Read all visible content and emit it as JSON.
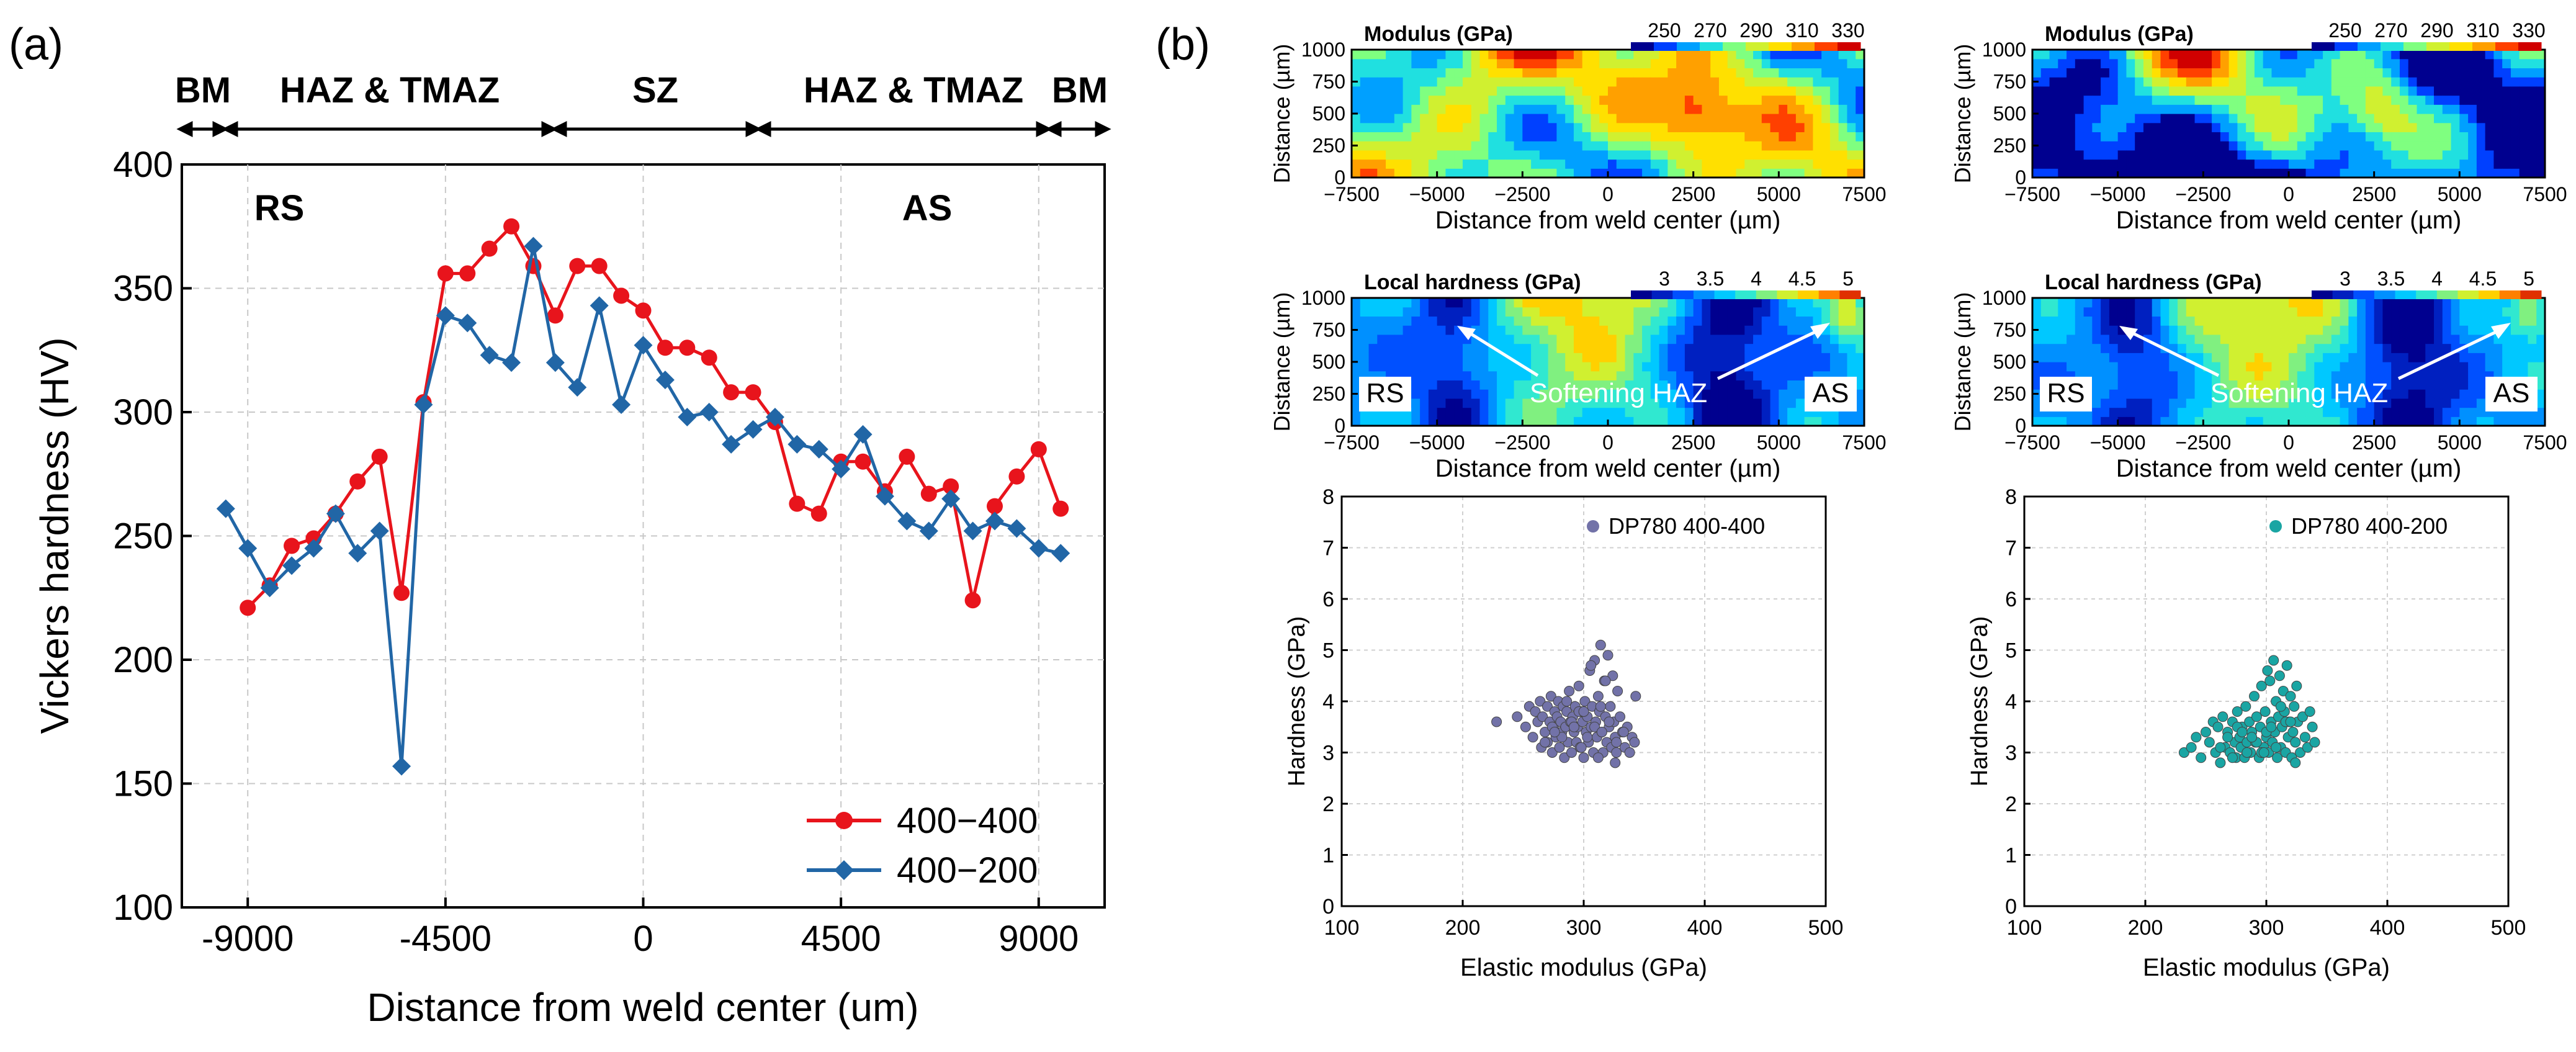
{
  "panel_a": {
    "label": "(a)",
    "zones": [
      "BM",
      "HAZ & TMAZ",
      "SZ",
      "HAZ & TMAZ",
      "BM"
    ],
    "side_left": "RS",
    "side_right": "AS"
  },
  "panel_b": {
    "label": "(b)",
    "maps": [
      {
        "title": "Modulus (GPa)",
        "ylabel": "Distance (µm)",
        "xlabel": "Distance from weld center (µm)",
        "colorbar_ticks": [
          "250",
          "270",
          "290",
          "310",
          "330"
        ],
        "x_ticks": [
          "−7500",
          "−5000",
          "−2500",
          "0",
          "2500",
          "5000",
          "7500"
        ],
        "y_ticks": [
          "0",
          "250",
          "500",
          "750",
          "1000"
        ]
      },
      {
        "title": "Modulus (GPa)",
        "ylabel": "Distance (µm)",
        "xlabel": "Distance from weld center (µm)",
        "colorbar_ticks": [
          "250",
          "270",
          "290",
          "310",
          "330"
        ],
        "x_ticks": [
          "−7500",
          "−5000",
          "−2500",
          "0",
          "2500",
          "5000",
          "7500"
        ],
        "y_ticks": [
          "0",
          "250",
          "500",
          "750",
          "1000"
        ]
      },
      {
        "title": "Local hardness (GPa)",
        "ylabel": "Distance (µm)",
        "xlabel": "Distance from weld center (µm)",
        "colorbar_ticks": [
          "3",
          "3.5",
          "4",
          "4.5",
          "5"
        ],
        "x_ticks": [
          "−7500",
          "−5000",
          "−2500",
          "0",
          "2500",
          "5000",
          "7500"
        ],
        "y_ticks": [
          "0",
          "250",
          "500",
          "750",
          "1000"
        ],
        "annotations": [
          "RS",
          "Softening HAZ",
          "AS"
        ]
      },
      {
        "title": "Local hardness (GPa)",
        "ylabel": "Distance (µm)",
        "xlabel": "Distance from weld center (µm)",
        "colorbar_ticks": [
          "3",
          "3.5",
          "4",
          "4.5",
          "5"
        ],
        "x_ticks": [
          "−7500",
          "−5000",
          "−2500",
          "0",
          "2500",
          "5000",
          "7500"
        ],
        "y_ticks": [
          "0",
          "250",
          "500",
          "750",
          "1000"
        ],
        "annotations": [
          "RS",
          "Softening HAZ",
          "AS"
        ]
      }
    ],
    "colors": {
      "modulus_scale": [
        "#00008f",
        "#0040ff",
        "#00a0ff",
        "#20e0e0",
        "#7fff80",
        "#d0f030",
        "#ffe000",
        "#ffa000",
        "#ff4000",
        "#d00000"
      ],
      "hardness_scale": [
        "#00008f",
        "#0020c0",
        "#0050ff",
        "#0090ff",
        "#00c8ff",
        "#30e8d0",
        "#80f080",
        "#d0f030",
        "#ffd000",
        "#ff8000",
        "#e03000"
      ]
    }
  },
  "chart_data": [
    {
      "type": "line",
      "title": "",
      "xlabel": "Distance from weld center (um)",
      "ylabel": "Vickers hardness (HV)",
      "xlim": [
        -10500,
        10500
      ],
      "ylim": [
        100,
        400
      ],
      "x_ticks": [
        -9000,
        -4500,
        0,
        4500,
        9000
      ],
      "y_ticks": [
        100,
        150,
        200,
        250,
        300,
        350,
        400
      ],
      "x_tick_labels": [
        "-9000",
        "-4500",
        "0",
        "4500",
        "9000"
      ],
      "y_tick_labels": [
        "100",
        "150",
        "200",
        "250",
        "300",
        "350",
        "400"
      ],
      "grid": true,
      "legend": "bottom-right",
      "series": [
        {
          "name": "400−400",
          "color": "#e8141c",
          "marker": "circle",
          "x": [
            -9000,
            -8500,
            -8000,
            -7500,
            -7000,
            -6500,
            -6000,
            -5500,
            -5000,
            -4500,
            -4000,
            -3500,
            -3000,
            -2500,
            -2000,
            -1500,
            -1000,
            -500,
            0,
            500,
            1000,
            1500,
            2000,
            2500,
            3000,
            3500,
            4000,
            4500,
            5000,
            5500,
            6000,
            6500,
            7000,
            7500,
            8000,
            8500,
            9000,
            9500
          ],
          "y": [
            221,
            230,
            246,
            249,
            259,
            272,
            282,
            227,
            304,
            356,
            356,
            366,
            375,
            359,
            339,
            359,
            359,
            347,
            341,
            326,
            326,
            322,
            308,
            308,
            296,
            263,
            259,
            280,
            280,
            268,
            282,
            267,
            270,
            224,
            262,
            274,
            285,
            261
          ]
        },
        {
          "name": "400−200",
          "color": "#2166a6",
          "marker": "diamond",
          "x": [
            -9500,
            -9000,
            -8500,
            -8000,
            -7500,
            -7000,
            -6500,
            -6000,
            -5500,
            -5000,
            -4500,
            -4000,
            -3500,
            -3000,
            -2500,
            -2000,
            -1500,
            -1000,
            -500,
            0,
            500,
            1000,
            1500,
            2000,
            2500,
            3000,
            3500,
            4000,
            4500,
            5000,
            5500,
            6000,
            6500,
            7000,
            7500,
            8000,
            8500,
            9000,
            9500
          ],
          "y": [
            261,
            245,
            229,
            238,
            245,
            259,
            243,
            252,
            157,
            303,
            339,
            336,
            323,
            320,
            367,
            320,
            310,
            343,
            303,
            327,
            313,
            298,
            300,
            287,
            293,
            298,
            287,
            285,
            277,
            291,
            266,
            256,
            252,
            265,
            252,
            256,
            253,
            245,
            243
          ]
        }
      ]
    },
    {
      "type": "scatter",
      "xlabel": "Elastic modulus (GPa)",
      "ylabel": "Hardness (GPa)",
      "xlim": [
        100,
        500
      ],
      "ylim": [
        0,
        8
      ],
      "x_ticks": [
        100,
        200,
        300,
        400,
        500
      ],
      "y_ticks": [
        0,
        1,
        2,
        3,
        4,
        5,
        6,
        7,
        8
      ],
      "grid": true,
      "legend": "top-right",
      "series": [
        {
          "name": "DP780 400-400",
          "color": "#7272a8",
          "x": [
            228,
            245,
            252,
            255,
            258,
            260,
            262,
            264,
            265,
            266,
            268,
            270,
            270,
            272,
            273,
            274,
            275,
            276,
            277,
            278,
            279,
            280,
            281,
            282,
            283,
            284,
            285,
            286,
            287,
            288,
            289,
            290,
            291,
            292,
            293,
            294,
            295,
            296,
            297,
            298,
            299,
            300,
            301,
            302,
            303,
            304,
            305,
            306,
            307,
            308,
            309,
            310,
            311,
            312,
            313,
            314,
            315,
            316,
            317,
            318,
            319,
            320,
            321,
            322,
            323,
            324,
            325,
            326,
            327,
            328,
            330,
            332,
            334,
            336,
            338,
            340,
            342,
            343,
            268,
            274,
            282,
            290,
            296,
            303,
            309,
            315,
            321,
            327,
            333,
            286,
            300,
            314,
            292,
            306,
            318,
            276,
            298,
            312,
            326
          ],
          "y": [
            3.6,
            3.7,
            3.5,
            3.9,
            3.3,
            3.8,
            3.6,
            4.0,
            3.1,
            3.7,
            3.4,
            3.9,
            3.2,
            3.6,
            4.1,
            3.0,
            3.5,
            3.8,
            3.3,
            3.7,
            4.0,
            3.1,
            3.6,
            3.4,
            3.9,
            2.9,
            3.5,
            3.8,
            3.2,
            4.2,
            3.6,
            3.0,
            3.7,
            3.4,
            3.9,
            3.2,
            3.5,
            4.3,
            3.1,
            3.8,
            3.6,
            2.9,
            4.0,
            3.4,
            3.7,
            3.2,
            4.6,
            3.5,
            3.9,
            3.0,
            4.8,
            3.6,
            3.3,
            4.1,
            3.8,
            5.1,
            3.4,
            3.0,
            4.4,
            3.7,
            3.2,
            4.9,
            3.5,
            3.9,
            3.1,
            4.5,
            3.6,
            3.3,
            3.0,
            4.2,
            3.7,
            3.4,
            3.1,
            3.5,
            3.0,
            3.3,
            3.2,
            4.1,
            3.2,
            3.5,
            3.3,
            3.6,
            3.8,
            3.3,
            3.5,
            3.4,
            3.6,
            3.2,
            3.4,
            4.0,
            3.8,
            3.9,
            3.5,
            4.7,
            4.4,
            3.4,
            3.1,
            2.9,
            2.8
          ]
        },
        {
          "name": "DP780 400-200",
          "color": "#1aa5a3",
          "x": [
            232,
            238,
            242,
            246,
            250,
            253,
            256,
            258,
            260,
            262,
            264,
            266,
            268,
            270,
            272,
            274,
            275,
            276,
            278,
            279,
            280,
            282,
            283,
            284,
            286,
            287,
            288,
            290,
            291,
            292,
            294,
            295,
            296,
            298,
            299,
            300,
            301,
            302,
            303,
            304,
            305,
            306,
            307,
            308,
            309,
            310,
            311,
            312,
            313,
            314,
            315,
            316,
            317,
            318,
            319,
            320,
            321,
            322,
            323,
            324,
            325,
            326,
            328,
            330,
            332,
            334,
            336,
            338,
            340,
            268,
            276,
            284,
            292,
            300,
            308,
            316,
            324,
            262,
            280,
            296,
            312,
            288,
            304,
            320,
            272,
            298
          ],
          "y": [
            3.0,
            3.1,
            3.3,
            2.9,
            3.4,
            3.2,
            3.6,
            3.0,
            3.5,
            2.8,
            3.7,
            3.1,
            3.4,
            3.0,
            3.6,
            3.2,
            2.9,
            3.8,
            3.3,
            3.1,
            3.5,
            2.9,
            3.9,
            3.2,
            3.6,
            3.0,
            3.4,
            4.1,
            3.2,
            3.7,
            2.9,
            3.5,
            4.3,
            3.1,
            3.8,
            3.3,
            4.6,
            3.0,
            4.4,
            3.6,
            3.2,
            4.8,
            3.4,
            4.0,
            2.9,
            3.7,
            4.5,
            3.1,
            3.5,
            4.2,
            3.8,
            3.0,
            4.7,
            3.3,
            3.6,
            4.1,
            2.9,
            3.4,
            3.9,
            3.2,
            4.3,
            3.6,
            3.0,
            3.7,
            3.3,
            3.1,
            3.8,
            3.5,
            3.2,
            3.3,
            3.5,
            3.0,
            3.2,
            3.4,
            3.1,
            3.6,
            2.8,
            3.1,
            3.4,
            3.0,
            3.9,
            3.3,
            3.5,
            3.6,
            2.9,
            3.0
          ]
        }
      ]
    }
  ]
}
